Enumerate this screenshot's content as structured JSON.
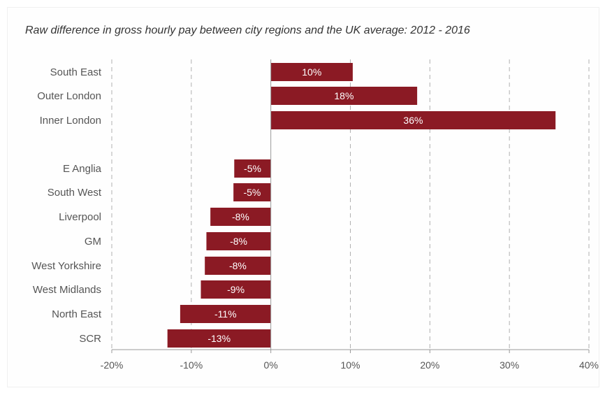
{
  "chart_data": {
    "type": "bar",
    "orientation": "horizontal",
    "title": "Raw difference in gross hourly pay between city regions and the UK average: 2012 - 2016",
    "categories": [
      "South East",
      "Outer London",
      "Inner London",
      "E Anglia",
      "South West",
      "Liverpool",
      "GM",
      "West Yorkshire",
      "West Midlands",
      "North East",
      "SCR"
    ],
    "values": [
      10.3,
      18.4,
      35.8,
      -4.6,
      -4.7,
      -7.6,
      -8.1,
      -8.3,
      -8.8,
      -11.4,
      -13.0
    ],
    "value_labels": [
      "10%",
      "18%",
      "36%",
      "-5%",
      "-5%",
      "-8%",
      "-8%",
      "-8%",
      "-9%",
      "-11%",
      "-13%"
    ],
    "xlim": [
      -20,
      40
    ],
    "x_ticks": [
      -20,
      -10,
      0,
      10,
      20,
      30,
      40
    ],
    "x_tick_labels": [
      "-20%",
      "-10%",
      "0%",
      "10%",
      "20%",
      "30%",
      "40%"
    ],
    "grid": "vertical dashed",
    "legend": "none",
    "bar_color": "#8b1a24",
    "gridline_color": "#b0b0b0",
    "axis_color": "#999999"
  }
}
